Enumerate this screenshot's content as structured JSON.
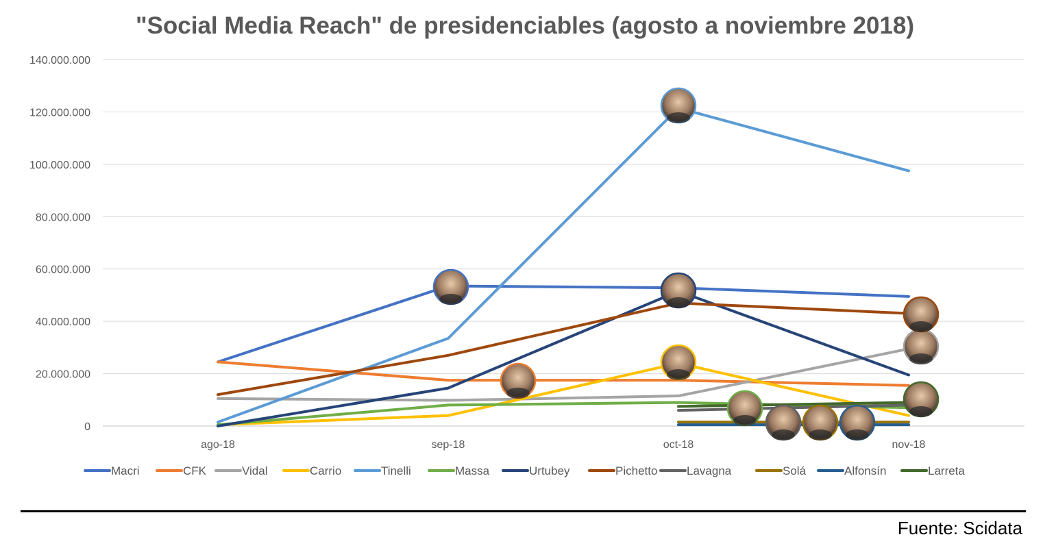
{
  "chart_data": {
    "type": "line",
    "title": "\"Social Media Reach\" de presidenciables (agosto a noviembre 2018)",
    "categories": [
      "ago-18",
      "sep-18",
      "oct-18",
      "nov-18"
    ],
    "ylim": [
      0,
      140000000
    ],
    "yticks": [
      0,
      20000000,
      40000000,
      60000000,
      80000000,
      100000000,
      120000000,
      140000000
    ],
    "ytick_labels": [
      "0",
      "20.000.000",
      "40.000.000",
      "60.000.000",
      "80.000.000",
      "100.000.000",
      "120.000.000",
      "140.000.000"
    ],
    "grid": true,
    "legend_position": "bottom",
    "series": [
      {
        "name": "Macri",
        "color": "#4472C4",
        "values": [
          24500000,
          53500000,
          52800000,
          49500000
        ],
        "photo_at": 1
      },
      {
        "name": "CFK",
        "color": "#ED7D31",
        "values": [
          24500000,
          17500000,
          17500000,
          15500000
        ],
        "photo_at": 1
      },
      {
        "name": "Vidal",
        "color": "#A5A5A5",
        "values": [
          10500000,
          9800000,
          11500000,
          29500000
        ],
        "photo_at": 3
      },
      {
        "name": "Carrio",
        "color": "#FFC000",
        "values": [
          500000,
          4000000,
          24000000,
          4000000
        ],
        "photo_at": 2
      },
      {
        "name": "Tinelli",
        "color": "#5B9BD5",
        "values": [
          1500000,
          33500000,
          121500000,
          97500000
        ],
        "photo_at": 2
      },
      {
        "name": "Massa",
        "color": "#70AD47",
        "values": [
          500000,
          8000000,
          9000000,
          7000000
        ],
        "photo_at": 2
      },
      {
        "name": "Urtubey",
        "color": "#264478",
        "values": [
          0,
          14500000,
          51500000,
          19500000
        ],
        "photo_at": 2
      },
      {
        "name": "Pichetto",
        "color": "#9E480E",
        "values": [
          12000000,
          27000000,
          47000000,
          43000000
        ],
        "photo_at": 3
      },
      {
        "name": "Lavagna",
        "color": "#636363",
        "values": [
          null,
          null,
          6000000,
          8000000
        ],
        "photo_at": null
      },
      {
        "name": "Solá",
        "color": "#997300",
        "values": [
          null,
          null,
          1500000,
          1500000
        ],
        "photo_at": null
      },
      {
        "name": "Alfonsín",
        "color": "#255E91",
        "values": [
          null,
          null,
          500000,
          500000
        ],
        "photo_at": null
      },
      {
        "name": "Larreta",
        "color": "#43682B",
        "values": [
          null,
          null,
          7500000,
          9000000
        ],
        "photo_at": 3
      }
    ]
  },
  "source_note": "Fuente: Scidata"
}
